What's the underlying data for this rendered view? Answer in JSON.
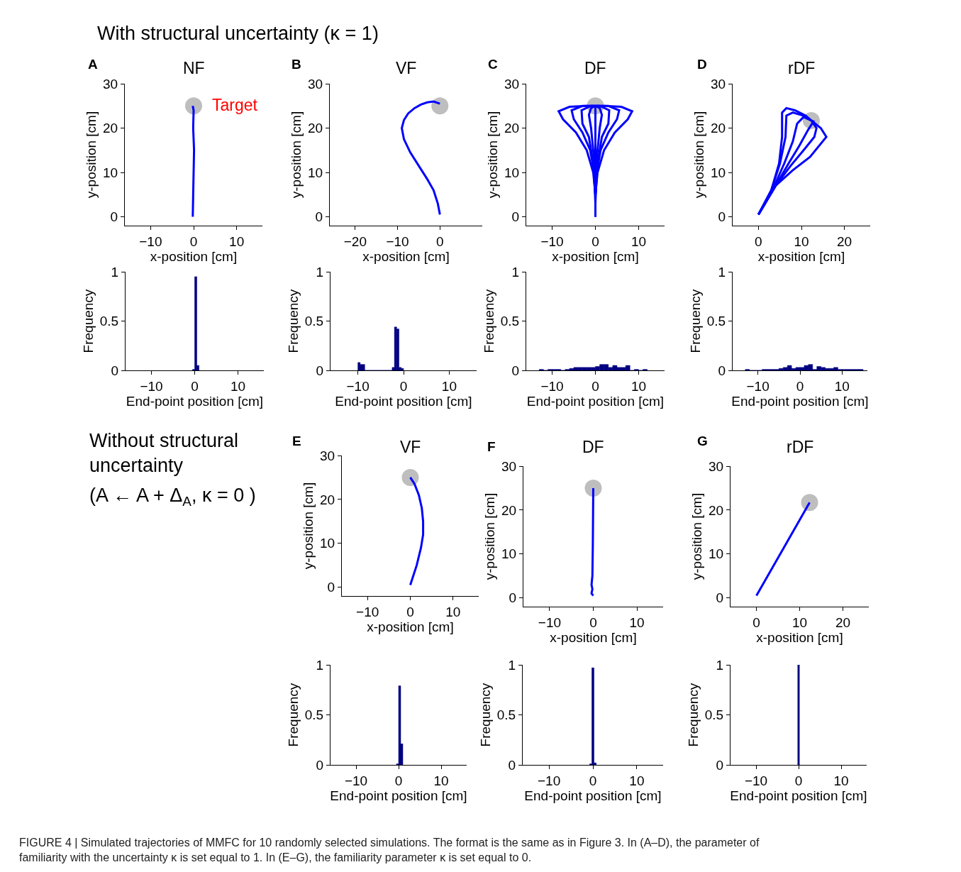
{
  "chart_data": [
    {
      "type": "line",
      "title": "NF",
      "xlabel": "x-position [cm]",
      "ylabel": "y-position [cm]",
      "xlim": [
        -16,
        16
      ],
      "xticks": [
        -10,
        0,
        10
      ],
      "ylim": [
        -2,
        30
      ],
      "yticks": [
        0,
        10,
        20,
        30
      ],
      "annotations": [
        "A",
        "With structural uncertainty (κ = 1)",
        "Target"
      ],
      "series": [
        {
          "type": "scatter",
          "color": "#bebebe",
          "x": [
            0
          ],
          "values": [
            25
          ]
        },
        {
          "color": "#0000ff",
          "x": [
            -0.2,
            -0.1,
            0.0,
            0.1,
            -0.1,
            0.0,
            -0.2
          ],
          "values": [
            0,
            5,
            10,
            15,
            20,
            24,
            25
          ]
        }
      ]
    },
    {
      "type": "line",
      "title": "VF",
      "xlabel": "x-position [cm]",
      "ylabel": "y-position [cm]",
      "xlim": [
        -26,
        10
      ],
      "xticks": [
        -20,
        -10,
        0
      ],
      "ylim": [
        -2,
        30
      ],
      "yticks": [
        0,
        10,
        20,
        30
      ],
      "annotations": [
        "B"
      ],
      "series": [
        {
          "color": "#0000ff",
          "x": [
            0,
            -0.5,
            -1.5,
            -3,
            -5,
            -7,
            -8.5,
            -9,
            -8.5,
            -7.5,
            -6,
            -4.5,
            -3,
            -1.5,
            0
          ],
          "values": [
            0.5,
            3,
            6,
            8.5,
            11.5,
            14.5,
            17.5,
            20,
            21.8,
            23.3,
            24.5,
            25.3,
            25.8,
            26,
            25.5
          ]
        },
        {
          "type": "scatter",
          "color": "#bebebe",
          "x": [
            0
          ],
          "values": [
            25
          ]
        }
      ]
    },
    {
      "type": "line",
      "title": "DF",
      "xlabel": "x-position [cm]",
      "ylabel": "y-position [cm]",
      "xlim": [
        -16,
        16
      ],
      "xticks": [
        -10,
        0,
        10
      ],
      "ylim": [
        -2,
        30
      ],
      "yticks": [
        0,
        10,
        20,
        30
      ],
      "annotations": [
        "C"
      ],
      "series": [
        {
          "color": "#0000ff",
          "x": [
            0,
            0,
            0
          ],
          "values": [
            0,
            12,
            25
          ]
        },
        {
          "color": "#0000ff",
          "x": [
            0,
            0,
            -0.5,
            -2,
            -4.5,
            -7.5,
            -8.5,
            -6,
            -2,
            0
          ],
          "values": [
            0,
            5,
            10,
            15,
            19,
            22,
            23.8,
            24.8,
            25,
            25
          ]
        },
        {
          "color": "#0000ff",
          "x": [
            0,
            0,
            0.5,
            2,
            4.5,
            7.5,
            8.5,
            6,
            2,
            0
          ],
          "values": [
            0,
            5,
            10,
            15,
            19,
            22,
            23.8,
            24.8,
            25,
            25
          ]
        },
        {
          "color": "#0000ff",
          "x": [
            0,
            -0.3,
            -1.2,
            -3,
            -5,
            -5.5,
            -3,
            0
          ],
          "values": [
            3,
            10,
            15,
            19,
            22,
            24,
            25,
            25
          ]
        },
        {
          "color": "#0000ff",
          "x": [
            0,
            0.3,
            1.2,
            3,
            5,
            5.5,
            3,
            0
          ],
          "values": [
            3,
            10,
            15,
            19,
            22,
            24,
            25,
            25
          ]
        },
        {
          "color": "#0000ff",
          "x": [
            0,
            -0.5,
            -1.5,
            -3,
            -3.2,
            -1,
            0
          ],
          "values": [
            5,
            12,
            18,
            21,
            24,
            25,
            25
          ]
        },
        {
          "color": "#0000ff",
          "x": [
            0,
            0.5,
            1.5,
            3,
            3.2,
            1,
            0
          ],
          "values": [
            5,
            12,
            18,
            21,
            24,
            25,
            25
          ]
        },
        {
          "color": "#0000ff",
          "x": [
            0,
            -0.5,
            -1,
            -1.5,
            -1,
            0
          ],
          "values": [
            8,
            15,
            20,
            23,
            24.5,
            25
          ]
        },
        {
          "color": "#0000ff",
          "x": [
            0,
            0.5,
            1,
            1.5,
            1,
            0
          ],
          "values": [
            8,
            15,
            20,
            23,
            24.5,
            25
          ]
        },
        {
          "type": "scatter",
          "color": "#bebebe",
          "x": [
            0
          ],
          "values": [
            25
          ]
        }
      ]
    },
    {
      "type": "line",
      "title": "rDF",
      "xlabel": "x-position [cm]",
      "ylabel": "y-position [cm]",
      "xlim": [
        -6,
        26
      ],
      "xticks": [
        0,
        10,
        20
      ],
      "ylim": [
        -2,
        30
      ],
      "yticks": [
        0,
        10,
        20,
        30
      ],
      "annotations": [
        "D"
      ],
      "series": [
        {
          "color": "#0000ff",
          "x": [
            0,
            3,
            4.8,
            5.5,
            5.5,
            6.5,
            8.5,
            11,
            12.3
          ],
          "values": [
            0.5,
            6,
            12,
            18,
            23.5,
            24.5,
            24,
            22.8,
            21.7
          ]
        },
        {
          "color": "#0000ff",
          "x": [
            0,
            3,
            5,
            6.3,
            6.5,
            8,
            10.5,
            12.3
          ],
          "values": [
            0.5,
            6,
            12,
            18,
            22.8,
            23.5,
            22.8,
            21.7
          ]
        },
        {
          "color": "#0000ff",
          "x": [
            0,
            3.5,
            6,
            8,
            9,
            10.5,
            12.3
          ],
          "values": [
            0.5,
            6.5,
            12,
            17,
            21,
            22.5,
            21.7
          ]
        },
        {
          "color": "#0000ff",
          "x": [
            0,
            4,
            7,
            9.5,
            11.5,
            12.8,
            12.3
          ],
          "values": [
            0.5,
            7,
            12,
            16,
            19.5,
            21.5,
            21.7
          ]
        },
        {
          "color": "#0000ff",
          "x": [
            0,
            4,
            7.5,
            10.5,
            13,
            13.5,
            12.3
          ],
          "values": [
            0.5,
            7,
            11.5,
            15,
            18,
            20,
            21.7
          ]
        },
        {
          "color": "#0000ff",
          "x": [
            0,
            4,
            8,
            12,
            15.8,
            14.5,
            12.3
          ],
          "values": [
            0.5,
            7,
            10.5,
            13.5,
            18,
            20,
            21.7
          ]
        },
        {
          "type": "scatter",
          "color": "#bebebe",
          "x": [
            12.3
          ],
          "values": [
            21.7
          ]
        }
      ]
    },
    {
      "type": "histogram",
      "xlabel": "End-point position [cm]",
      "ylabel": "Frequency",
      "xlim": [
        -16,
        16
      ],
      "xticks": [
        -10,
        0,
        10
      ],
      "ylim": [
        0,
        1
      ],
      "yticks": [
        0,
        0.5,
        1
      ],
      "color": "#000080",
      "bins": [
        -0.5,
        0,
        0.5,
        1.0
      ],
      "values": [
        0.01,
        0.95,
        0.05
      ]
    },
    {
      "type": "histogram",
      "xlabel": "End-point position [cm]",
      "ylabel": "Frequency",
      "xlim": [
        -16,
        16
      ],
      "xticks": [
        -10,
        0,
        10
      ],
      "ylim": [
        0,
        1
      ],
      "yticks": [
        0,
        0.5,
        1
      ],
      "color": "#000080",
      "bins": [
        -10,
        -9.5,
        -9,
        -8.5,
        -8,
        -7.5,
        -7,
        -6.5,
        -6,
        -5.5,
        -5,
        -4.5,
        -4,
        -3.5,
        -3,
        -2.5,
        -2,
        -1.5,
        -1,
        -0.5,
        0
      ],
      "values": [
        0.08,
        0.06,
        0.06,
        0,
        0,
        0,
        0,
        0,
        0,
        0,
        0,
        0,
        0,
        0,
        0,
        0.03,
        0.44,
        0.42,
        0.03,
        0.02
      ]
    },
    {
      "type": "histogram",
      "xlabel": "End-point position [cm]",
      "ylabel": "Frequency",
      "xlim": [
        -16,
        16
      ],
      "xticks": [
        -10,
        0,
        10
      ],
      "ylim": [
        0,
        1
      ],
      "yticks": [
        0,
        0.5,
        1
      ],
      "color": "#000080",
      "bins": [
        -13,
        -12,
        -11,
        -10,
        -9,
        -8,
        -7,
        -6,
        -5,
        -4,
        -3,
        -2,
        -1,
        0,
        1,
        2,
        3,
        4,
        5,
        6,
        7,
        8,
        9,
        10,
        11,
        12
      ],
      "values": [
        0.01,
        0,
        0.01,
        0.01,
        0.01,
        0,
        0.01,
        0.02,
        0.03,
        0.03,
        0.03,
        0.03,
        0.03,
        0.04,
        0.06,
        0.06,
        0.03,
        0.05,
        0.03,
        0.03,
        0.05,
        0,
        0.01,
        0,
        0.01
      ]
    },
    {
      "type": "histogram",
      "xlabel": "End-point position [cm]",
      "ylabel": "Frequency",
      "xlim": [
        -16,
        16
      ],
      "xticks": [
        -10,
        0,
        10
      ],
      "ylim": [
        0,
        1
      ],
      "yticks": [
        0,
        0.5,
        1
      ],
      "color": "#000080",
      "bins": [
        -13,
        -12,
        -11,
        -10,
        -9,
        -8,
        -7,
        -6,
        -5,
        -4,
        -3,
        -2,
        -1,
        0,
        1,
        2,
        3,
        4,
        5,
        6,
        7,
        8,
        9,
        10,
        11,
        12,
        13,
        14,
        15
      ],
      "values": [
        0.01,
        0,
        0,
        0,
        0.01,
        0.01,
        0.01,
        0.01,
        0.02,
        0.03,
        0.05,
        0.02,
        0.03,
        0.03,
        0.05,
        0.06,
        0.01,
        0.04,
        0.03,
        0.02,
        0.02,
        0.03,
        0.01,
        0.01,
        0.01,
        0.01,
        0.01,
        0.01
      ]
    },
    {
      "type": "line",
      "title": "VF",
      "xlabel": "x-position [cm]",
      "ylabel": "y-position [cm]",
      "xlim": [
        -16,
        16
      ],
      "xticks": [
        -10,
        0,
        10
      ],
      "ylim": [
        -2,
        30
      ],
      "yticks": [
        0,
        10,
        20,
        30
      ],
      "annotations": [
        "E",
        "Without structural\nuncertainty",
        "(A ← A + Δ$_{A}$, κ = 0 )"
      ],
      "series": [
        {
          "color": "#0000ff",
          "x": [
            0,
            1.5,
            2.5,
            3,
            3,
            2.7,
            2,
            1,
            0
          ],
          "values": [
            0.5,
            5,
            9,
            12,
            15,
            18,
            21,
            23.5,
            25
          ]
        },
        {
          "type": "scatter",
          "color": "#bebebe",
          "x": [
            0
          ],
          "values": [
            25
          ]
        }
      ]
    },
    {
      "type": "line",
      "title": "DF",
      "xlabel": "x-position [cm]",
      "ylabel": "y-position [cm]",
      "xlim": [
        -16,
        16
      ],
      "xticks": [
        -10,
        0,
        10
      ],
      "ylim": [
        -2,
        30
      ],
      "yticks": [
        0,
        10,
        20,
        30
      ],
      "annotations": [
        "F"
      ],
      "series": [
        {
          "color": "#0000ff",
          "x": [
            0,
            -0.1,
            -0.2,
            -0.4,
            -0.2,
            -0.4,
            0
          ],
          "values": [
            25,
            12,
            5,
            3,
            2,
            1,
            0.5
          ]
        },
        {
          "type": "scatter",
          "color": "#bebebe",
          "x": [
            0
          ],
          "values": [
            25
          ]
        }
      ]
    },
    {
      "type": "line",
      "title": "rDF",
      "xlabel": "x-position [cm]",
      "ylabel": "y-position [cm]",
      "xlim": [
        -6,
        26
      ],
      "xticks": [
        0,
        10,
        20
      ],
      "ylim": [
        -2,
        30
      ],
      "yticks": [
        0,
        10,
        20,
        30
      ],
      "annotations": [
        "G"
      ],
      "series": [
        {
          "color": "#0000ff",
          "x": [
            0,
            12.3
          ],
          "values": [
            0.5,
            21.7
          ]
        },
        {
          "type": "scatter",
          "color": "#bebebe",
          "x": [
            12.3
          ],
          "values": [
            21.7
          ]
        }
      ]
    },
    {
      "type": "histogram",
      "xlabel": "End-point position [cm]",
      "ylabel": "Frequency",
      "xlim": [
        -16,
        16
      ],
      "xticks": [
        -10,
        0,
        10
      ],
      "ylim": [
        0,
        1
      ],
      "yticks": [
        0,
        0.5,
        1
      ],
      "color": "#000080",
      "bins": [
        -0.5,
        0,
        0.5,
        1.0
      ],
      "values": [
        0.01,
        0.79,
        0.21
      ]
    },
    {
      "type": "histogram",
      "xlabel": "End-point position [cm]",
      "ylabel": "Frequency",
      "xlim": [
        -16,
        16
      ],
      "xticks": [
        -10,
        0,
        10
      ],
      "ylim": [
        0,
        1
      ],
      "yticks": [
        0,
        0.5,
        1
      ],
      "color": "#000080",
      "bins": [
        -0.75,
        -0.25,
        0.25,
        0.75
      ],
      "values": [
        0.01,
        0.97,
        0.02
      ]
    },
    {
      "type": "histogram",
      "xlabel": "End-point position [cm]",
      "ylabel": "Frequency",
      "xlim": [
        -16,
        16
      ],
      "xticks": [
        -10,
        0,
        10
      ],
      "ylim": [
        0,
        1
      ],
      "yticks": [
        0,
        0.5,
        1
      ],
      "color": "#000080",
      "bins": [
        -0.2,
        0.2
      ],
      "values": [
        1.0
      ],
      "annotations": [
        "FIGURE 4 | Simulated trajectories of MMFC for 10 randomly selected simulations. The format is the same as in Figure 3. In (A–D), the parameter of\nfamiliarity with the uncertainty κ is set equal to 1. In (E–G), the familiarity parameter κ is set equal to 0."
      ]
    }
  ]
}
